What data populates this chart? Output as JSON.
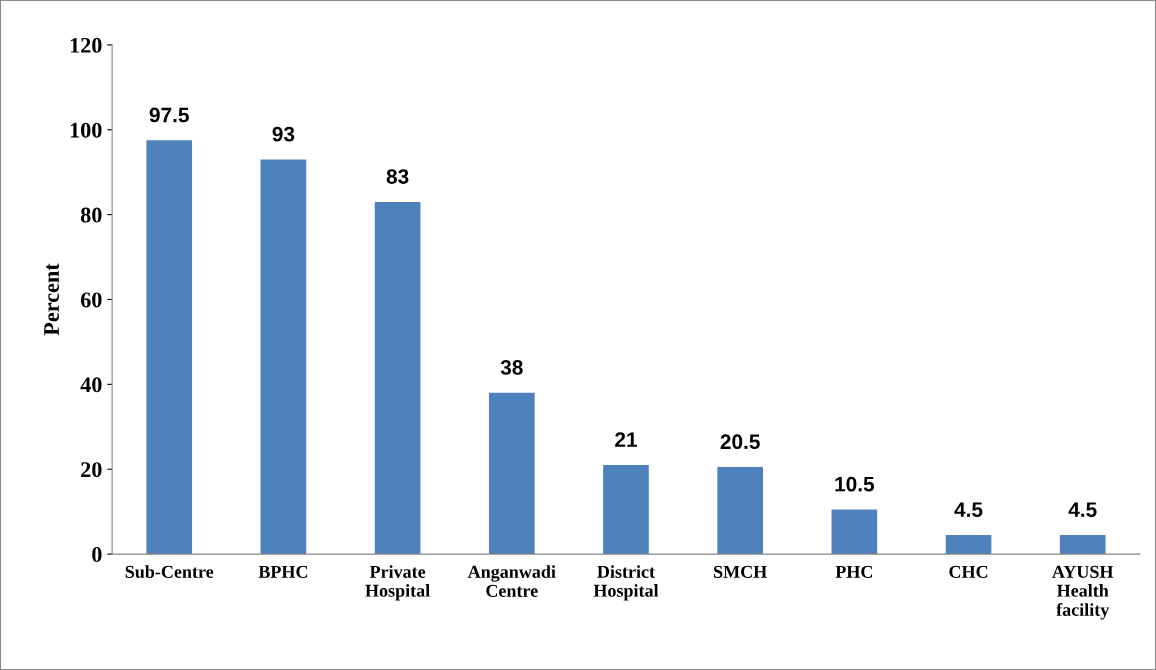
{
  "chart_data": {
    "type": "bar",
    "ylabel": "Percent",
    "categories": [
      "Sub-Centre",
      "BPHC",
      "Private\nHospital",
      "Anganwadi\nCentre",
      "District\nHospital",
      "SMCH",
      "PHC",
      "CHC",
      "AYUSH\nHealth\nfacility"
    ],
    "values": [
      97.5,
      93,
      83,
      38,
      21,
      20.5,
      10.5,
      4.5,
      4.5
    ],
    "color": "#4f81bd",
    "ylim": [
      0,
      120
    ],
    "yticks": [
      0,
      20,
      40,
      60,
      80,
      100,
      120
    ],
    "data_labels": true,
    "grid": false,
    "legend": false
  }
}
